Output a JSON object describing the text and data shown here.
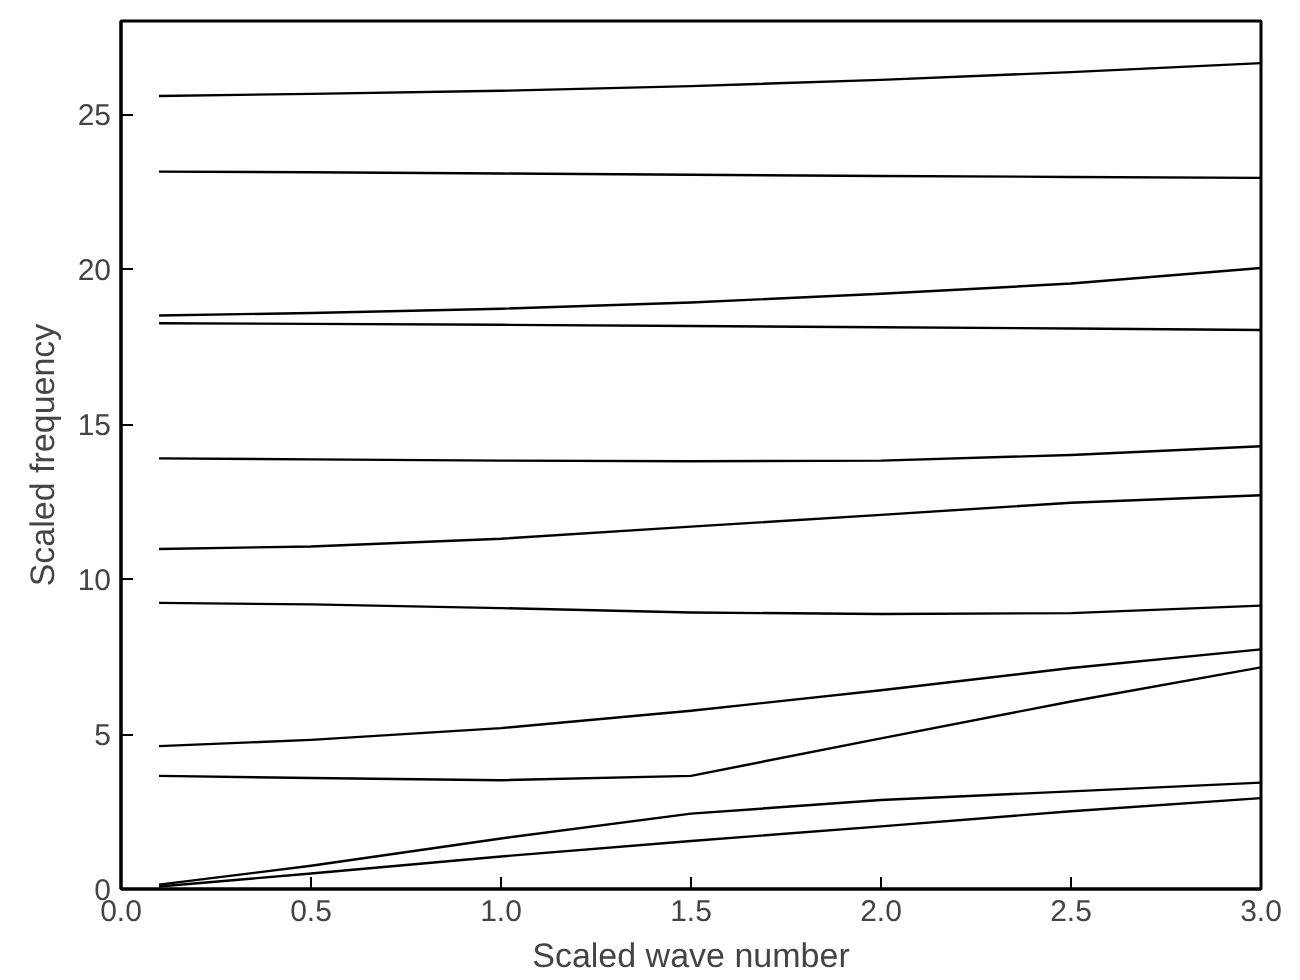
{
  "chart_data": {
    "type": "line",
    "xlabel": "Scaled wave number",
    "ylabel": "Scaled frequency",
    "x": [
      0.1,
      0.5,
      1.0,
      1.5,
      2.0,
      2.5,
      3.0
    ],
    "xlim": [
      0,
      3
    ],
    "ylim": [
      0,
      28
    ],
    "xticks": [
      {
        "value": 0,
        "label": "0.0"
      },
      0.5,
      {
        "value": 1,
        "label": "1.0"
      },
      1.5,
      {
        "value": 2,
        "label": "2.0"
      },
      2.5,
      {
        "value": 3,
        "label": "3.0"
      }
    ],
    "yticks": [
      0,
      5,
      10,
      15,
      20,
      25
    ],
    "grid": false,
    "line_style": "solid",
    "marker": "none",
    "series": [
      {
        "color": "#000000",
        "values": [
          25.58,
          25.65,
          25.75,
          25.9,
          26.1,
          26.35,
          26.64
        ]
      },
      {
        "color": "#000000",
        "values": [
          23.14,
          23.12,
          23.08,
          23.04,
          23.0,
          22.97,
          22.94
        ]
      },
      {
        "color": "#000000",
        "values": [
          18.5,
          18.58,
          18.72,
          18.92,
          19.2,
          19.53,
          20.03
        ]
      },
      {
        "color": "#000000",
        "values": [
          18.25,
          18.23,
          18.2,
          18.16,
          18.12,
          18.08,
          18.03
        ]
      },
      {
        "color": "#000000",
        "values": [
          13.89,
          13.86,
          13.82,
          13.8,
          13.82,
          14.0,
          14.28
        ]
      },
      {
        "color": "#000000",
        "values": [
          10.97,
          11.05,
          11.3,
          11.69,
          12.07,
          12.46,
          12.7
        ]
      },
      {
        "color": "#000000",
        "values": [
          9.23,
          9.18,
          9.06,
          8.92,
          8.87,
          8.9,
          9.14
        ]
      },
      {
        "color": "#000000",
        "values": [
          4.61,
          4.81,
          5.19,
          5.75,
          6.41,
          7.13,
          7.73
        ]
      },
      {
        "color": "#000000",
        "values": [
          3.65,
          3.58,
          3.51,
          3.65,
          4.86,
          6.05,
          7.15
        ]
      },
      {
        "color": "#000000",
        "values": [
          0.14,
          0.75,
          1.63,
          2.43,
          2.87,
          3.15,
          3.43
        ]
      },
      {
        "color": "#000000",
        "values": [
          0.08,
          0.5,
          1.05,
          1.55,
          2.02,
          2.51,
          2.93
        ]
      }
    ]
  }
}
